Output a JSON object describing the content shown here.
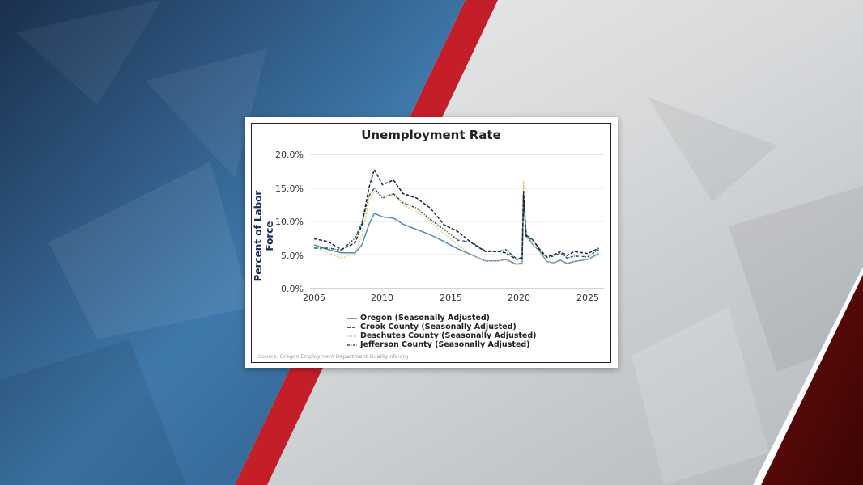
{
  "background": {
    "left_color": "#1f3d63",
    "left_highlight": "#4c86ba",
    "stripe_color": "#c8202a",
    "right_color": "#e6e7e9",
    "right_shadow": "#a4a8ad",
    "corner_color": "#5a0a0a"
  },
  "chart_card": {
    "title": "Unemployment Rate",
    "y_axis_label": "Percent of Labor Force",
    "source": "Source: Oregon Employment Department Qualityinfo.org",
    "y_ticks": [
      "20.0%",
      "15.0%",
      "10.0%",
      "5.0%",
      "0.0%"
    ],
    "x_ticks": [
      "2005",
      "2010",
      "2015",
      "2020",
      "2025"
    ],
    "legend": [
      {
        "label": "Oregon (Seasonally Adjusted)",
        "color": "#4a8cc0",
        "style": "solid"
      },
      {
        "label": "Crook County (Seasonally Adjusted)",
        "color": "#1a2340",
        "style": "dashed"
      },
      {
        "label": "Deschutes County (Seasonally Adjusted)",
        "color": "#f0b84a",
        "style": "dotted"
      },
      {
        "label": "Jefferson County (Seasonally Adjusted)",
        "color": "#1f5a5a",
        "style": "dashdot"
      }
    ]
  },
  "chart_data": {
    "type": "line",
    "title": "Unemployment Rate",
    "xlabel": "",
    "ylabel": "Percent of Labor Force",
    "ylim": [
      0,
      20
    ],
    "xlim": [
      2005,
      2026
    ],
    "grid": true,
    "legend_position": "bottom",
    "x": [
      2005,
      2006,
      2007,
      2008,
      2008.5,
      2009,
      2009.4,
      2010,
      2010.8,
      2011.5,
      2012.5,
      2013.5,
      2014.5,
      2015.5,
      2016.5,
      2017.5,
      2018.5,
      2019,
      2019.8,
      2020.2,
      2020.3,
      2020.5,
      2021,
      2021.5,
      2022,
      2022.5,
      2023,
      2023.5,
      2024,
      2025,
      2025.8
    ],
    "series": [
      {
        "name": "Oregon (Seasonally Adjusted)",
        "values": [
          6.5,
          5.8,
          5.3,
          5.3,
          6.5,
          9.5,
          11.2,
          10.7,
          10.5,
          9.6,
          8.8,
          8.0,
          7.0,
          5.9,
          5.0,
          4.1,
          4.1,
          4.3,
          3.6,
          3.8,
          13.5,
          8.0,
          6.5,
          5.5,
          4.0,
          3.8,
          4.2,
          3.7,
          4.0,
          4.3,
          5.2
        ]
      },
      {
        "name": "Crook County (Seasonally Adjusted)",
        "values": [
          7.4,
          7.0,
          5.8,
          6.8,
          9.5,
          15.0,
          17.8,
          15.5,
          16.2,
          14.2,
          13.5,
          12.0,
          9.5,
          8.5,
          6.8,
          5.5,
          5.5,
          5.3,
          4.3,
          4.5,
          14.5,
          7.8,
          7.2,
          5.8,
          4.7,
          5.0,
          5.5,
          4.9,
          5.5,
          5.2,
          6.0
        ]
      },
      {
        "name": "Deschutes County (Seasonally Adjusted)",
        "values": [
          6.2,
          5.3,
          4.5,
          5.2,
          8.0,
          13.0,
          14.5,
          13.8,
          14.0,
          12.5,
          11.5,
          10.0,
          8.2,
          6.5,
          5.0,
          4.1,
          4.1,
          4.3,
          3.5,
          3.6,
          16.0,
          7.5,
          6.5,
          5.4,
          4.0,
          3.8,
          4.1,
          3.6,
          4.0,
          4.3,
          5.0
        ]
      },
      {
        "name": "Jefferson County (Seasonally Adjusted)",
        "values": [
          6.0,
          6.0,
          5.7,
          7.5,
          9.8,
          13.8,
          15.0,
          13.5,
          14.2,
          12.8,
          12.0,
          10.3,
          8.8,
          7.2,
          6.9,
          5.6,
          5.5,
          5.8,
          4.4,
          4.6,
          14.0,
          8.0,
          7.2,
          5.7,
          4.6,
          4.8,
          5.3,
          4.5,
          4.8,
          4.7,
          5.8
        ]
      }
    ]
  }
}
